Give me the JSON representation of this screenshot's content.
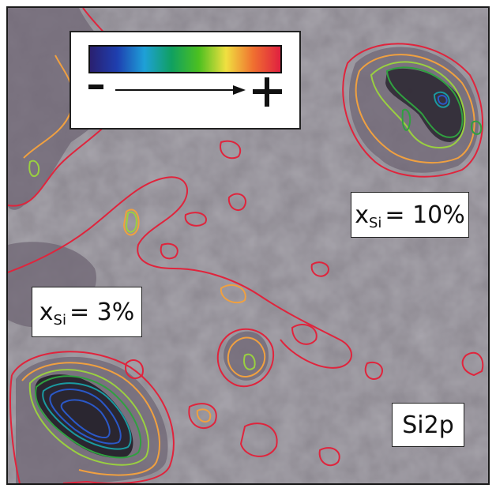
{
  "annotations": {
    "region_high": {
      "symbol": "x",
      "subscript": "Si",
      "value_text": "= 10%"
    },
    "region_low": {
      "symbol": "x",
      "subscript": "Si",
      "value_text": "= 3%"
    },
    "element_label": "Si2p"
  },
  "legend": {
    "gradient_stops": [
      "#2a2070",
      "#1e3fb0",
      "#1ea0d8",
      "#10a060",
      "#4cc020",
      "#f0e040",
      "#f07030",
      "#e02040"
    ],
    "low_symbol": "–",
    "high_symbol": "+"
  },
  "colors": {
    "background": "#8e8a92",
    "contour_outer": "#e0243c",
    "contour_orange": "#f0a040",
    "contour_green_light": "#9ad040",
    "contour_green": "#30a040",
    "contour_teal": "#1a9aa0",
    "contour_blue": "#2a58c8",
    "dark_core": "#2a2630"
  }
}
